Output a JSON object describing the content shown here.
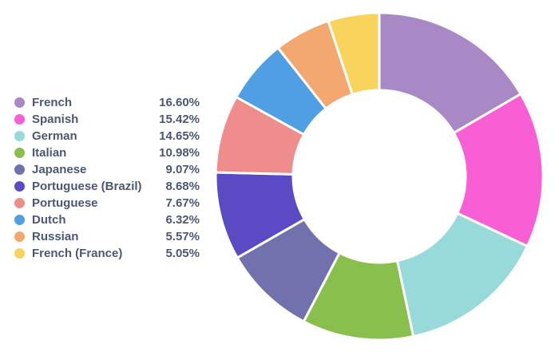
{
  "chart_data": {
    "type": "pie",
    "style": "donut",
    "legend_position": "left",
    "categories": [
      "French",
      "Spanish",
      "German",
      "Italian",
      "Japanese",
      "Portuguese (Brazil)",
      "Portuguese",
      "Dutch",
      "Russian",
      "French (France)"
    ],
    "values": [
      16.6,
      15.42,
      14.65,
      10.98,
      9.07,
      8.68,
      7.67,
      6.32,
      5.57,
      5.05
    ],
    "value_labels": [
      "16.60%",
      "15.42%",
      "14.65%",
      "10.98%",
      "9.07%",
      "8.68%",
      "7.67%",
      "6.32%",
      "5.57%",
      "5.05%"
    ],
    "colors": [
      "#A989C5",
      "#F95FD5",
      "#98D9D9",
      "#88BF4D",
      "#7172AD",
      "#5A4BC4",
      "#EF8C8C",
      "#509EE3",
      "#F2A86F",
      "#F9D45C"
    ]
  }
}
